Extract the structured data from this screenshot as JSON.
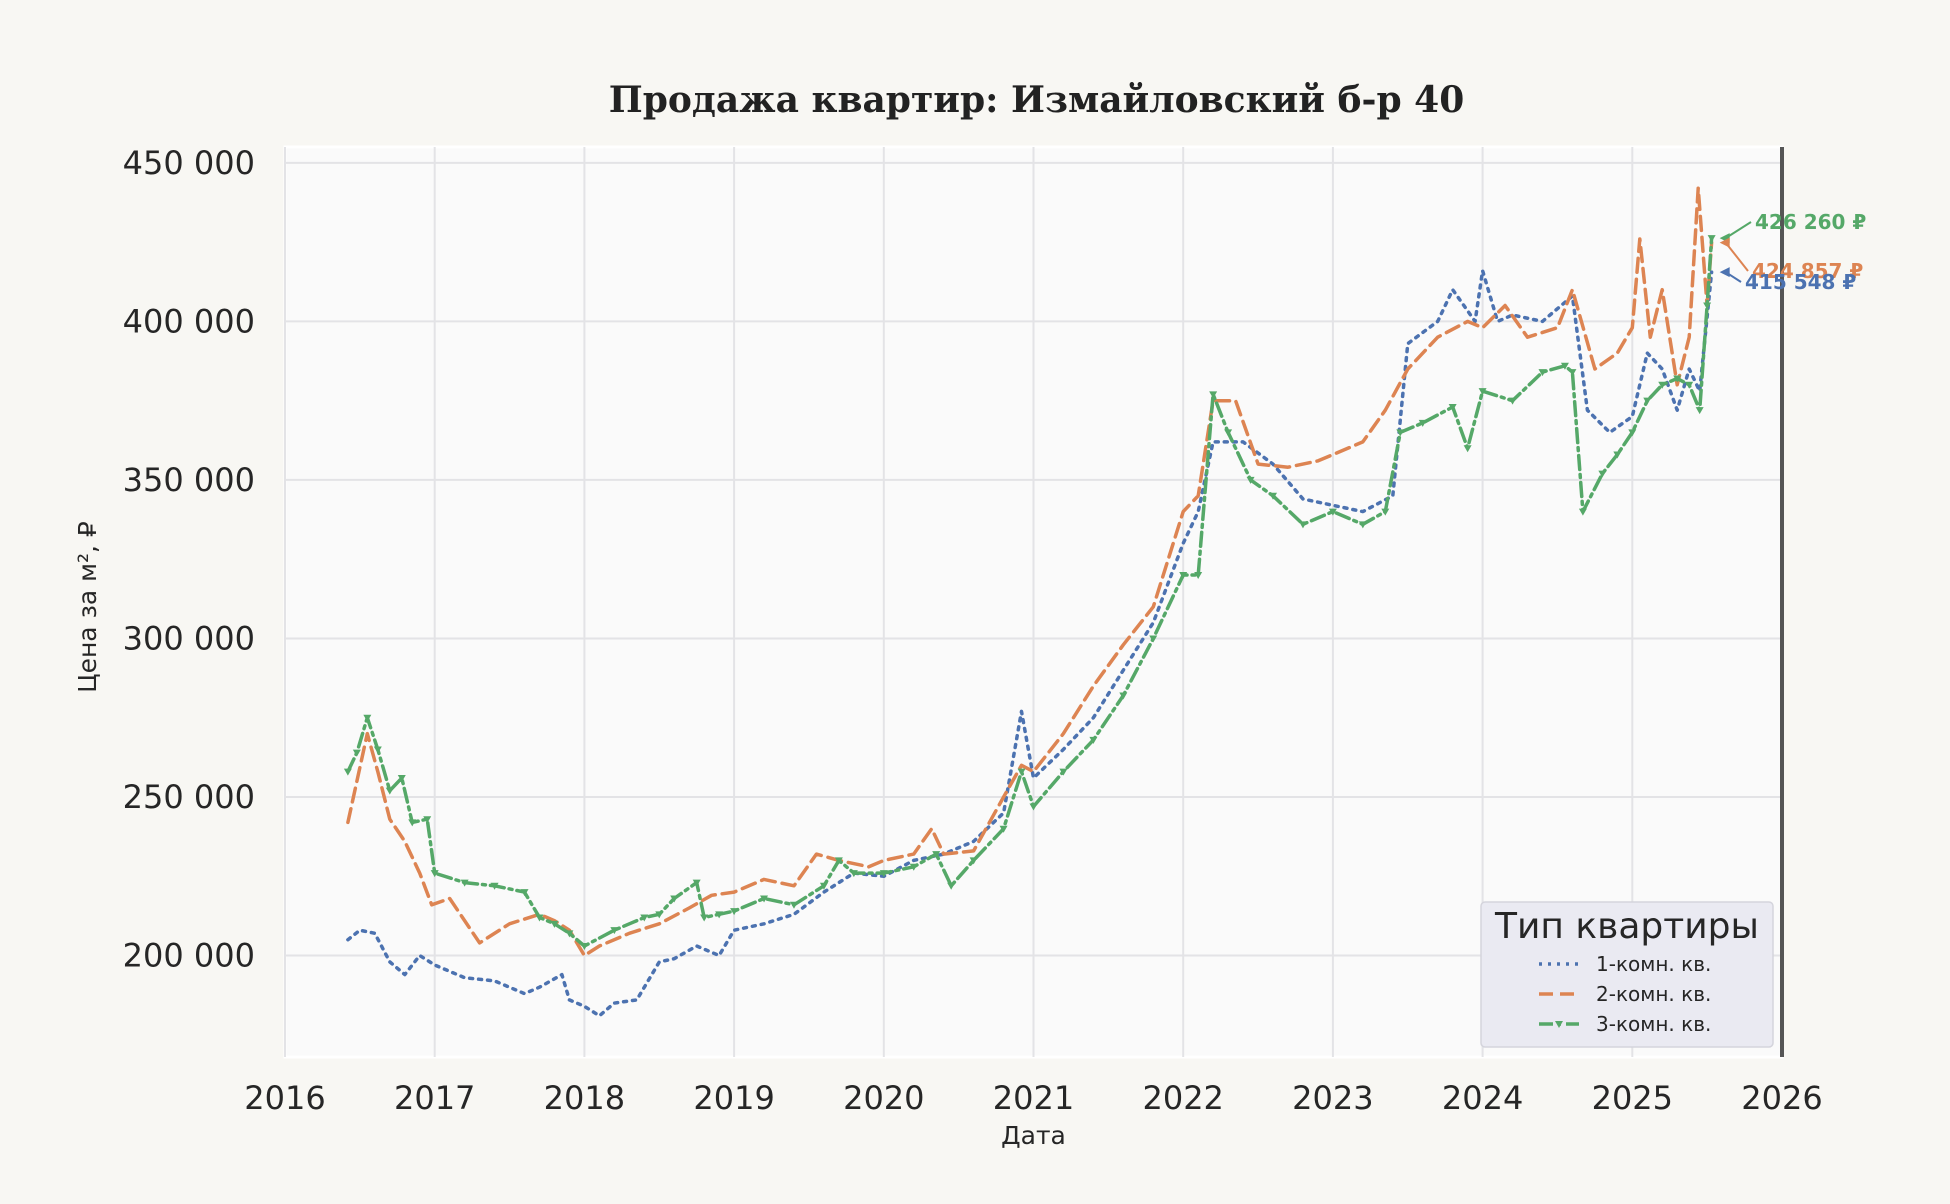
{
  "chart_data": {
    "type": "line",
    "title": "Продажа квартир: Измайловский б-р 40",
    "xlabel": "Дата",
    "ylabel": "Цена за м², ₽",
    "xlim": [
      2016.0,
      2026.0
    ],
    "ylim": [
      168000,
      455000
    ],
    "x_ticks": [
      "2016",
      "2017",
      "2018",
      "2019",
      "2020",
      "2021",
      "2022",
      "2023",
      "2024",
      "2025",
      "2026"
    ],
    "y_ticks": [
      {
        "value": 200000,
        "label": "200 000"
      },
      {
        "value": 250000,
        "label": "250 000"
      },
      {
        "value": 300000,
        "label": "300 000"
      },
      {
        "value": 350000,
        "label": "350 000"
      },
      {
        "value": 400000,
        "label": "400 000"
      },
      {
        "value": 450000,
        "label": "450 000"
      }
    ],
    "grid": true,
    "legend": {
      "title": "Тип квартиры",
      "position": "lower-right"
    },
    "series": [
      {
        "name": "1-комн. кв.",
        "color": "#4c72b0",
        "style": "dotted",
        "x": [
          2016.42,
          2016.5,
          2016.6,
          2016.7,
          2016.8,
          2016.9,
          2017.0,
          2017.2,
          2017.4,
          2017.6,
          2017.7,
          2017.85,
          2017.9,
          2018.0,
          2018.1,
          2018.2,
          2018.35,
          2018.5,
          2018.6,
          2018.75,
          2018.9,
          2019.0,
          2019.2,
          2019.4,
          2019.6,
          2019.8,
          2020.0,
          2020.2,
          2020.4,
          2020.6,
          2020.8,
          2020.92,
          2021.0,
          2021.2,
          2021.4,
          2021.6,
          2021.8,
          2022.0,
          2022.1,
          2022.2,
          2022.4,
          2022.6,
          2022.8,
          2023.0,
          2023.2,
          2023.4,
          2023.5,
          2023.7,
          2023.8,
          2023.95,
          2024.0,
          2024.1,
          2024.2,
          2024.4,
          2024.6,
          2024.7,
          2024.85,
          2025.0,
          2025.1,
          2025.2,
          2025.3,
          2025.38,
          2025.45,
          2025.53
        ],
        "y": [
          205000,
          208000,
          207000,
          198000,
          194000,
          200000,
          197000,
          193000,
          192000,
          188000,
          190000,
          194000,
          186000,
          184000,
          181000,
          185000,
          186000,
          198000,
          199000,
          203000,
          200000,
          208000,
          210000,
          213000,
          220000,
          226000,
          225000,
          230000,
          232000,
          236000,
          245000,
          277000,
          256000,
          265000,
          275000,
          290000,
          305000,
          330000,
          340000,
          362000,
          362000,
          355000,
          344000,
          342000,
          340000,
          345000,
          393000,
          400000,
          410000,
          400000,
          416000,
          400000,
          402000,
          400000,
          408000,
          372000,
          365000,
          370000,
          390000,
          385000,
          372000,
          385000,
          378000,
          415548
        ]
      },
      {
        "name": "2-комн. кв.",
        "color": "#dd8452",
        "style": "dashed",
        "x": [
          2016.42,
          2016.48,
          2016.55,
          2016.62,
          2016.7,
          2016.8,
          2016.9,
          2016.98,
          2017.1,
          2017.3,
          2017.5,
          2017.7,
          2017.8,
          2017.9,
          2018.0,
          2018.1,
          2018.3,
          2018.5,
          2018.7,
          2018.85,
          2019.0,
          2019.2,
          2019.4,
          2019.55,
          2019.7,
          2019.9,
          2020.0,
          2020.2,
          2020.32,
          2020.4,
          2020.6,
          2020.8,
          2020.92,
          2021.0,
          2021.2,
          2021.4,
          2021.6,
          2021.8,
          2022.0,
          2022.1,
          2022.2,
          2022.35,
          2022.5,
          2022.7,
          2022.9,
          2023.0,
          2023.2,
          2023.35,
          2023.5,
          2023.7,
          2023.9,
          2024.0,
          2024.15,
          2024.3,
          2024.5,
          2024.6,
          2024.75,
          2024.9,
          2025.0,
          2025.05,
          2025.12,
          2025.2,
          2025.3,
          2025.38,
          2025.44,
          2025.5,
          2025.53
        ],
        "y": [
          242000,
          255000,
          270000,
          258000,
          243000,
          236000,
          226000,
          216000,
          218000,
          204000,
          210000,
          213000,
          211000,
          208000,
          200000,
          203000,
          207000,
          210000,
          215000,
          219000,
          220000,
          224000,
          222000,
          232000,
          230000,
          228000,
          230000,
          232000,
          240000,
          232000,
          233000,
          250000,
          260000,
          258000,
          270000,
          285000,
          298000,
          310000,
          340000,
          345000,
          375000,
          375000,
          355000,
          354000,
          356000,
          358000,
          362000,
          372000,
          385000,
          395000,
          400000,
          398000,
          405000,
          395000,
          398000,
          410000,
          385000,
          390000,
          398000,
          426000,
          395000,
          410000,
          380000,
          395000,
          442000,
          405000,
          424857
        ]
      },
      {
        "name": "3-комн. кв.",
        "color": "#55a868",
        "style": "dashdot",
        "x": [
          2016.42,
          2016.48,
          2016.55,
          2016.62,
          2016.7,
          2016.78,
          2016.85,
          2016.95,
          2017.0,
          2017.2,
          2017.4,
          2017.6,
          2017.7,
          2017.8,
          2017.9,
          2018.0,
          2018.2,
          2018.4,
          2018.5,
          2018.6,
          2018.75,
          2018.8,
          2018.9,
          2019.0,
          2019.2,
          2019.4,
          2019.6,
          2019.7,
          2019.8,
          2020.0,
          2020.2,
          2020.35,
          2020.45,
          2020.6,
          2020.8,
          2020.92,
          2021.0,
          2021.2,
          2021.4,
          2021.6,
          2021.8,
          2022.0,
          2022.1,
          2022.2,
          2022.3,
          2022.45,
          2022.6,
          2022.8,
          2023.0,
          2023.2,
          2023.35,
          2023.45,
          2023.6,
          2023.8,
          2023.9,
          2024.0,
          2024.2,
          2024.4,
          2024.55,
          2024.6,
          2024.67,
          2024.8,
          2024.9,
          2025.0,
          2025.1,
          2025.2,
          2025.3,
          2025.38,
          2025.45,
          2025.5,
          2025.53
        ],
        "y": [
          258000,
          264000,
          275000,
          265000,
          252000,
          256000,
          242000,
          243000,
          226000,
          223000,
          222000,
          220000,
          212000,
          210000,
          207000,
          203000,
          208000,
          212000,
          213000,
          218000,
          223000,
          212000,
          213000,
          214000,
          218000,
          216000,
          222000,
          230000,
          226000,
          226000,
          228000,
          232000,
          222000,
          230000,
          240000,
          258000,
          247000,
          258000,
          268000,
          282000,
          300000,
          320000,
          320000,
          377000,
          365000,
          350000,
          345000,
          336000,
          340000,
          336000,
          340000,
          365000,
          368000,
          373000,
          360000,
          378000,
          375000,
          384000,
          386000,
          384000,
          340000,
          352000,
          358000,
          365000,
          375000,
          380000,
          382000,
          380000,
          372000,
          405000,
          426260
        ]
      }
    ],
    "annotations": [
      {
        "series": 2,
        "text": "426 260 ₽",
        "x": 2025.53,
        "y": 426260
      },
      {
        "series": 1,
        "text": "424 857 ₽",
        "x": 2025.53,
        "y": 424857
      },
      {
        "series": 0,
        "text": "415 548 ₽",
        "x": 2025.53,
        "y": 415548
      }
    ]
  }
}
